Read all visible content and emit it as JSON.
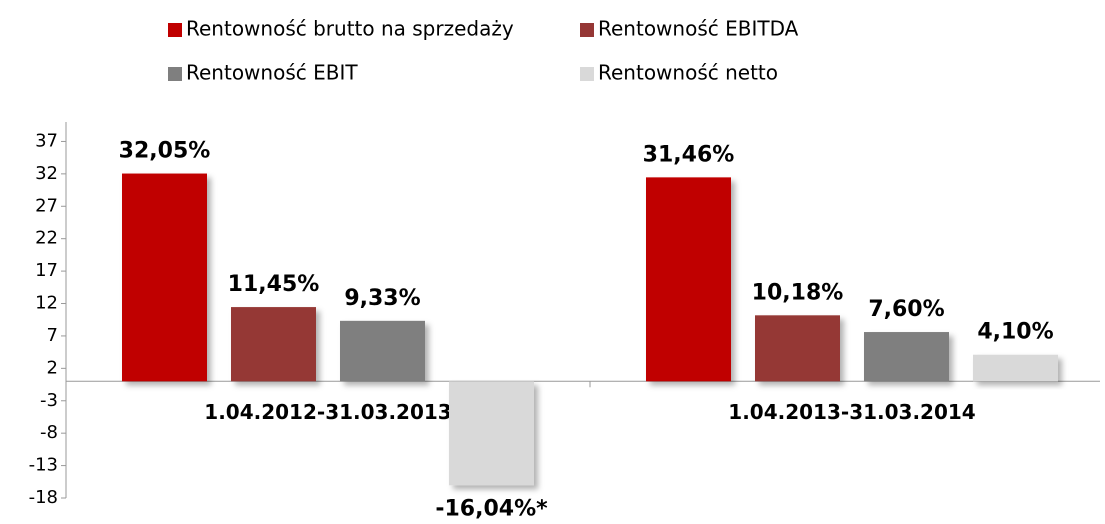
{
  "chart_data": {
    "type": "bar",
    "categories": [
      "1.04.2012-31.03.2013",
      "1.04.2013-31.03.2014"
    ],
    "series": [
      {
        "name": "Rentowność brutto na sprzedaży",
        "color": "#c00000",
        "values": [
          32.05,
          31.46
        ],
        "value_labels": [
          "32,05%",
          "31,46%"
        ]
      },
      {
        "name": "Rentowność EBITDA",
        "color": "#953735",
        "values": [
          11.45,
          10.18
        ],
        "value_labels": [
          "11,45%",
          "10,18%"
        ]
      },
      {
        "name": "Rentowność EBIT",
        "color": "#7f7f7f",
        "values": [
          9.33,
          7.6
        ],
        "value_labels": [
          "9,33%",
          "7,60%"
        ]
      },
      {
        "name": "Rentowność netto",
        "color": "#d9d9d9",
        "values": [
          -16.04,
          4.1
        ],
        "value_labels": [
          "-16,04%*",
          "4,10%"
        ]
      }
    ],
    "ylim": [
      -18,
      40
    ],
    "yticks": [
      -18,
      -13,
      -8,
      -3,
      2,
      7,
      12,
      17,
      22,
      27,
      32,
      37
    ],
    "grid": false
  }
}
